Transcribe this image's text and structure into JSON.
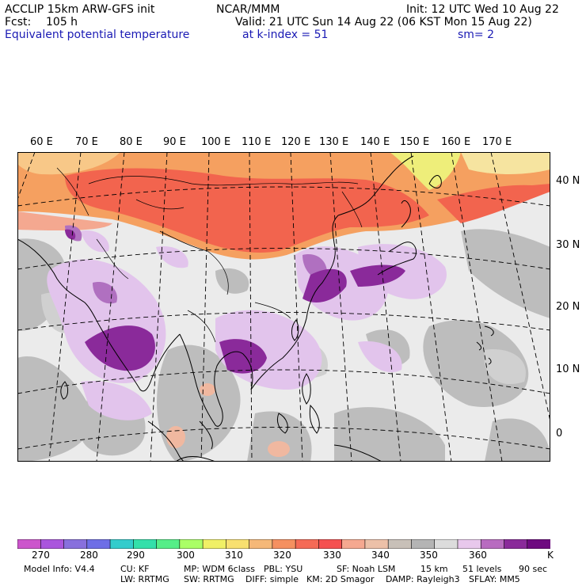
{
  "header": {
    "model": "ACCLIP 15km ARW-GFS init",
    "org": "NCAR/MMM",
    "init": "Init: 12 UTC Wed 10 Aug 22",
    "fcst_label": "Fcst:",
    "fcst_value": "105 h",
    "valid": "Valid: 21 UTC Sun 14 Aug 22 (06 KST Mon 15 Aug 22)",
    "field": "Equivalent potential temperature",
    "level": "at k-index = 51",
    "smooth": "sm= 2"
  },
  "map": {
    "lon_labels": [
      "60 E",
      "70 E",
      "80 E",
      "90 E",
      "100 E",
      "110 E",
      "120 E",
      "130 E",
      "140 E",
      "150 E",
      "160 E",
      "170 E"
    ],
    "lat_labels": [
      "40 N",
      "30 N",
      "20 N",
      "10 N",
      "0"
    ]
  },
  "colorbar": {
    "colors": [
      "#cc55cc",
      "#aa55dd",
      "#8870dd",
      "#6e6ee6",
      "#33cccc",
      "#33e0aa",
      "#55ee88",
      "#aaff66",
      "#f0f066",
      "#f8e070",
      "#f5b878",
      "#f59060",
      "#f56a56",
      "#f55050",
      "#f5a890",
      "#ecc0a8",
      "#c8c0b8",
      "#b4b4b4",
      "#dcdcdc",
      "#e8c8ec",
      "#b86cc0",
      "#8a2a9a",
      "#6e0a80"
    ],
    "ticks": [
      "270",
      "280",
      "290",
      "300",
      "310",
      "320",
      "330",
      "340",
      "350",
      "360"
    ],
    "unit": "K"
  },
  "footer": {
    "line1": [
      "Model Info: V4.4",
      "CU: KF",
      "MP: WDM 6class",
      "PBL: YSU",
      "SF: Noah LSM",
      "15 km",
      "51 levels",
      "90 sec"
    ],
    "line2": [
      "LW: RRTMG",
      "SW: RRTMG",
      "DIFF: simple",
      "KM: 2D Smagor",
      "DAMP: Rayleigh3",
      "SFLAY: MM5"
    ]
  }
}
